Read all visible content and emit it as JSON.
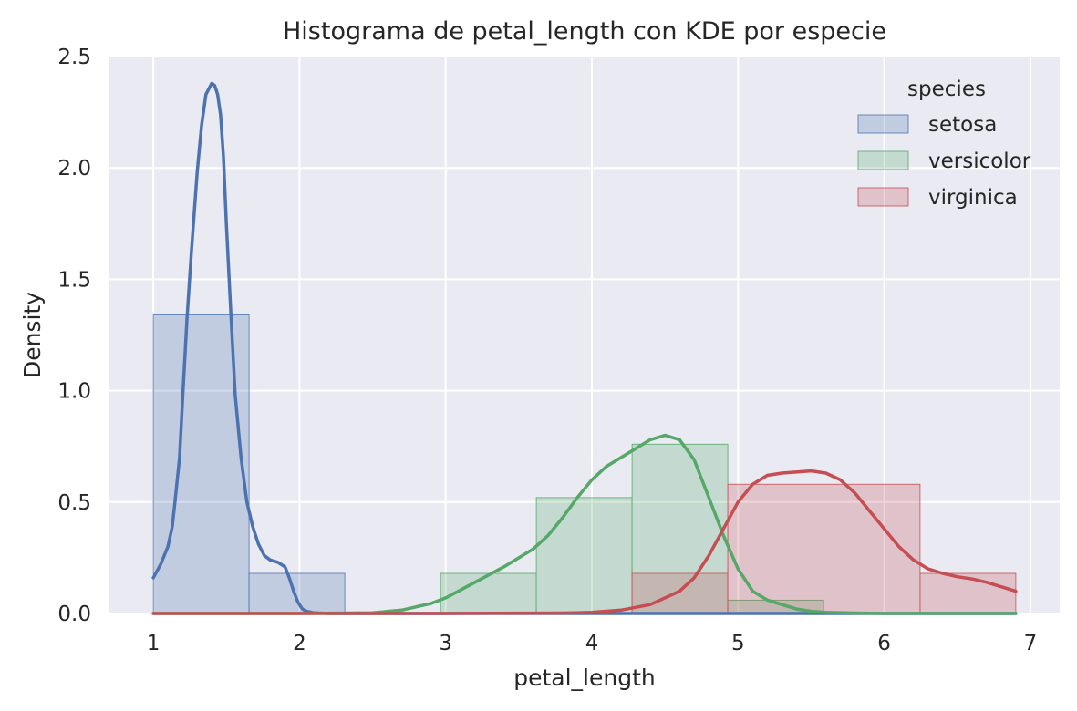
{
  "chart_data": {
    "type": "histogram",
    "title": "Histograma de petal_length con KDE por especie",
    "xlabel": "petal_length",
    "ylabel": "Density",
    "xlim": [
      0.7,
      7.2
    ],
    "ylim": [
      0,
      2.5
    ],
    "xticks": [
      1,
      2,
      3,
      4,
      5,
      6,
      7
    ],
    "yticks": [
      0.0,
      0.5,
      1.0,
      1.5,
      2.0,
      2.5
    ],
    "ytick_labels": [
      "0.0",
      "0.5",
      "1.0",
      "1.5",
      "2.0",
      "2.5"
    ],
    "grid": true,
    "legend": {
      "title": "species",
      "position": "top-right"
    },
    "series": [
      {
        "name": "setosa",
        "color": "#4c72b0",
        "histogram": {
          "edges": [
            1.0,
            1.655,
            2.31
          ],
          "density": [
            1.34,
            0.18
          ]
        },
        "kde": {
          "x": [
            1.0,
            1.05,
            1.1,
            1.13,
            1.15,
            1.18,
            1.2,
            1.23,
            1.26,
            1.3,
            1.33,
            1.36,
            1.4,
            1.42,
            1.44,
            1.46,
            1.48,
            1.5,
            1.53,
            1.56,
            1.6,
            1.64,
            1.68,
            1.72,
            1.76,
            1.8,
            1.85,
            1.9,
            1.93,
            1.96,
            1.99,
            2.02,
            2.05,
            2.1,
            2.2,
            2.5,
            3.0,
            4.0,
            5.0,
            6.0,
            6.9
          ],
          "y": [
            0.16,
            0.22,
            0.3,
            0.39,
            0.51,
            0.7,
            0.96,
            1.32,
            1.62,
            1.98,
            2.19,
            2.33,
            2.38,
            2.37,
            2.33,
            2.24,
            2.05,
            1.75,
            1.35,
            0.98,
            0.7,
            0.5,
            0.39,
            0.31,
            0.26,
            0.24,
            0.23,
            0.21,
            0.16,
            0.1,
            0.05,
            0.02,
            0.01,
            0.003,
            0.0,
            0.0,
            0.0,
            0.0,
            0.0,
            0.0,
            0.0
          ]
        }
      },
      {
        "name": "versicolor",
        "color": "#55a868",
        "histogram": {
          "edges": [
            2.965,
            3.62,
            4.275,
            4.93,
            5.585
          ],
          "density": [
            0.18,
            0.52,
            0.76,
            0.06
          ]
        },
        "kde": {
          "x": [
            1.0,
            2.0,
            2.5,
            2.7,
            2.9,
            3.0,
            3.2,
            3.4,
            3.6,
            3.7,
            3.8,
            3.9,
            4.0,
            4.1,
            4.2,
            4.3,
            4.4,
            4.5,
            4.6,
            4.7,
            4.8,
            4.9,
            5.0,
            5.1,
            5.2,
            5.3,
            5.4,
            5.5,
            5.6,
            5.8,
            6.0,
            6.5,
            6.9
          ],
          "y": [
            0.0,
            0.0,
            0.003,
            0.015,
            0.045,
            0.07,
            0.14,
            0.21,
            0.29,
            0.35,
            0.43,
            0.52,
            0.6,
            0.66,
            0.7,
            0.74,
            0.78,
            0.8,
            0.78,
            0.69,
            0.52,
            0.35,
            0.2,
            0.1,
            0.06,
            0.04,
            0.02,
            0.01,
            0.005,
            0.002,
            0.0,
            0.0,
            0.0
          ]
        }
      },
      {
        "name": "virginica",
        "color": "#c44e52",
        "histogram": {
          "edges": [
            4.275,
            4.93,
            6.245,
            6.9
          ],
          "density": [
            0.18,
            0.58,
            0.18
          ]
        },
        "kde": {
          "x": [
            1.0,
            3.0,
            3.8,
            4.0,
            4.2,
            4.4,
            4.6,
            4.7,
            4.8,
            4.9,
            5.0,
            5.1,
            5.2,
            5.3,
            5.5,
            5.6,
            5.7,
            5.8,
            5.9,
            6.0,
            6.1,
            6.2,
            6.3,
            6.4,
            6.5,
            6.6,
            6.7,
            6.8,
            6.9
          ],
          "y": [
            0.0,
            0.0,
            0.002,
            0.005,
            0.015,
            0.04,
            0.1,
            0.16,
            0.26,
            0.38,
            0.5,
            0.58,
            0.62,
            0.63,
            0.64,
            0.63,
            0.6,
            0.54,
            0.46,
            0.38,
            0.3,
            0.24,
            0.2,
            0.18,
            0.165,
            0.155,
            0.14,
            0.12,
            0.1
          ]
        }
      }
    ]
  }
}
